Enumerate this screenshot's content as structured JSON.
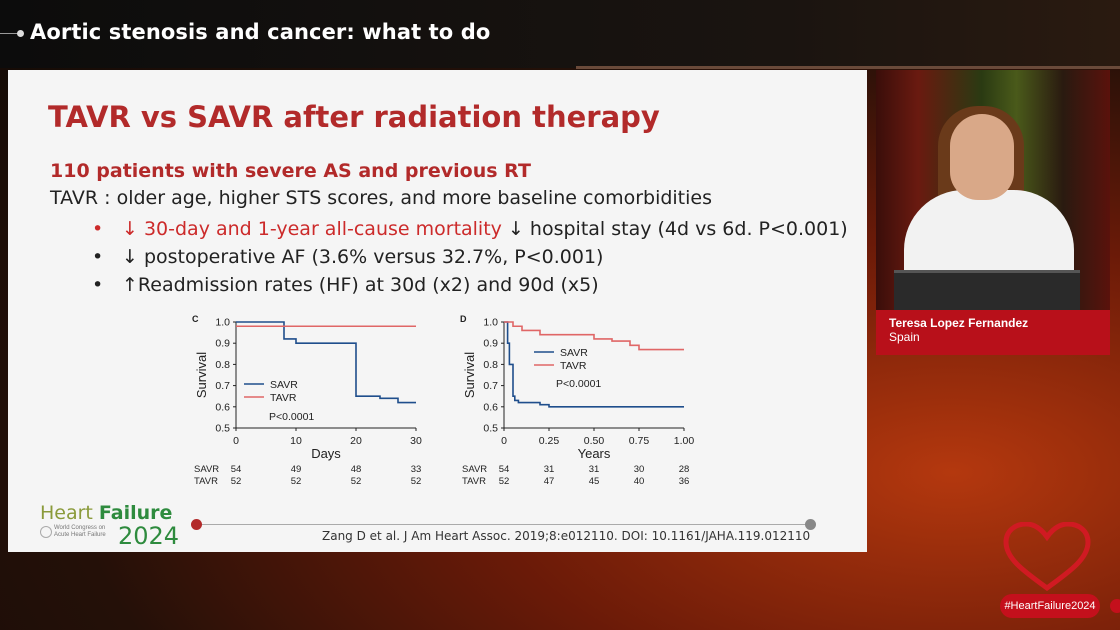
{
  "header": {
    "title": "Aortic stenosis and cancer: what to do"
  },
  "slide": {
    "title": "TAVR vs SAVR after radiation therapy",
    "subtitle": "110 patients with severe AS and previous RT",
    "lead": "TAVR : older age, higher STS scores, and more baseline comorbidities",
    "bullets": [
      {
        "symbol": "•",
        "highlight": "↓ 30-day and 1-year all-cause mortality",
        "text": " ↓ hospital stay (4d vs 6d. P<0.001)"
      },
      {
        "symbol": "•",
        "highlight": "",
        "text": "↓ postoperative AF (3.6% versus 32.7%, P<0.001)"
      },
      {
        "symbol": "•",
        "highlight": "",
        "text": "↑Readmission rates (HF) at 30d (x2) and 90d (x5)"
      }
    ],
    "citation": "Zang D et al. J Am Heart Assoc. 2019;8:e012110. DOI: 10.1161/JAHA.119.012110",
    "logo": {
      "word1": "Heart ",
      "word2": "Failure",
      "sub": "World Congress on Acute Heart Failure",
      "year": "2024"
    }
  },
  "chart_data": [
    {
      "type": "line",
      "panel": "C",
      "xlabel": "Days",
      "ylabel": "Survival",
      "xlim": [
        0,
        30
      ],
      "ylim": [
        0.5,
        1.0
      ],
      "xticks": [
        "0",
        "10",
        "20",
        "30"
      ],
      "yticks": [
        "0.5",
        "0.6",
        "0.7",
        "0.8",
        "0.9",
        "1.0"
      ],
      "annotation": "P<0.0001",
      "series": [
        {
          "name": "SAVR",
          "color": "#1f4e8c",
          "x": [
            0,
            8,
            8,
            10,
            20,
            20,
            24,
            27,
            30
          ],
          "y": [
            1.0,
            1.0,
            0.92,
            0.9,
            0.9,
            0.65,
            0.64,
            0.62,
            0.62
          ]
        },
        {
          "name": "TAVR",
          "color": "#e06666",
          "x": [
            0,
            30
          ],
          "y": [
            0.98,
            0.98
          ]
        }
      ],
      "risk_table": {
        "rows": [
          {
            "label": "SAVR",
            "values": [
              "54",
              "49",
              "48",
              "33"
            ]
          },
          {
            "label": "TAVR",
            "values": [
              "52",
              "52",
              "52",
              "52"
            ]
          }
        ]
      }
    },
    {
      "type": "line",
      "panel": "D",
      "xlabel": "Years",
      "ylabel": "Survival",
      "xlim": [
        0,
        1.0
      ],
      "ylim": [
        0.5,
        1.0
      ],
      "xticks": [
        "0",
        "0.25",
        "0.50",
        "0.75",
        "1.00"
      ],
      "yticks": [
        "0.5",
        "0.6",
        "0.7",
        "0.8",
        "0.9",
        "1.0"
      ],
      "annotation": "P<0.0001",
      "series": [
        {
          "name": "SAVR",
          "color": "#1f4e8c",
          "x": [
            0,
            0.02,
            0.03,
            0.05,
            0.06,
            0.08,
            0.2,
            0.25,
            1.0
          ],
          "y": [
            1.0,
            0.9,
            0.8,
            0.65,
            0.63,
            0.62,
            0.61,
            0.6,
            0.6
          ]
        },
        {
          "name": "TAVR",
          "color": "#e06666",
          "x": [
            0,
            0.05,
            0.1,
            0.2,
            0.45,
            0.5,
            0.6,
            0.7,
            0.75,
            0.85,
            1.0
          ],
          "y": [
            1.0,
            0.98,
            0.96,
            0.94,
            0.94,
            0.92,
            0.91,
            0.89,
            0.87,
            0.87,
            0.87
          ]
        }
      ],
      "risk_table": {
        "rows": [
          {
            "label": "SAVR",
            "values": [
              "54",
              "31",
              "31",
              "30",
              "28"
            ]
          },
          {
            "label": "TAVR",
            "values": [
              "52",
              "47",
              "45",
              "40",
              "36"
            ]
          }
        ]
      }
    }
  ],
  "speaker": {
    "name": "Teresa Lopez Fernandez",
    "country": "Spain"
  },
  "footer": {
    "hashtag": "#HeartFailure2024"
  }
}
